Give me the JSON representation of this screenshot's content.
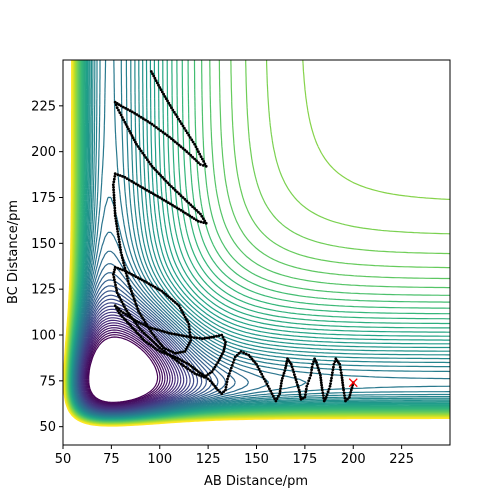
{
  "chart_data": {
    "type": "contour",
    "xlabel": "AB Distance/pm",
    "ylabel": "BC Distance/pm",
    "xlim": [
      50,
      250
    ],
    "ylim": [
      40,
      250
    ],
    "x_ticks": [
      "50",
      "75",
      "100",
      "125",
      "150",
      "175",
      "200",
      "225"
    ],
    "y_ticks": [
      "50",
      "75",
      "100",
      "125",
      "150",
      "175",
      "200",
      "225"
    ],
    "x_tick_values": [
      50,
      75,
      100,
      125,
      150,
      175,
      200,
      225
    ],
    "y_tick_values": [
      50,
      75,
      100,
      125,
      150,
      175,
      200,
      225
    ],
    "grid": false,
    "colormap": "viridis",
    "contour_colors": [
      "#440154",
      "#482878",
      "#3e4989",
      "#31688e",
      "#26828e",
      "#1f9e89",
      "#35b779",
      "#6ece58",
      "#b5de2b",
      "#fde725"
    ],
    "trajectory_color": "#000000",
    "trajectory_points": [
      [
        200,
        74
      ],
      [
        199,
        70
      ],
      [
        198,
        66
      ],
      [
        196,
        64
      ],
      [
        195,
        70
      ],
      [
        194,
        78
      ],
      [
        193,
        84
      ],
      [
        191,
        87
      ],
      [
        190,
        84
      ],
      [
        189,
        78
      ],
      [
        188,
        72
      ],
      [
        186,
        66
      ],
      [
        185,
        64
      ],
      [
        184,
        70
      ],
      [
        183,
        78
      ],
      [
        181,
        85
      ],
      [
        180,
        87
      ],
      [
        179,
        84
      ],
      [
        178,
        78
      ],
      [
        176,
        72
      ],
      [
        175,
        66
      ],
      [
        173,
        65
      ],
      [
        172,
        70
      ],
      [
        170,
        77
      ],
      [
        168,
        84
      ],
      [
        166,
        87
      ],
      [
        165,
        82
      ],
      [
        163,
        75
      ],
      [
        162,
        68
      ],
      [
        160,
        64
      ],
      [
        158,
        68
      ],
      [
        154,
        76
      ],
      [
        150,
        84
      ],
      [
        146,
        89
      ],
      [
        142,
        91
      ],
      [
        139,
        88
      ],
      [
        137,
        82
      ],
      [
        135,
        76
      ],
      [
        134,
        70
      ],
      [
        132,
        68
      ],
      [
        130,
        70
      ],
      [
        127,
        74
      ],
      [
        124,
        77
      ],
      [
        120,
        80
      ],
      [
        115,
        84
      ],
      [
        108,
        88
      ],
      [
        100,
        91
      ],
      [
        92,
        97
      ],
      [
        85,
        105
      ],
      [
        79,
        112
      ],
      [
        77,
        116
      ],
      [
        80,
        113
      ],
      [
        87,
        108
      ],
      [
        95,
        104
      ],
      [
        105,
        101
      ],
      [
        115,
        99
      ],
      [
        122,
        98
      ],
      [
        128,
        99
      ],
      [
        132,
        100
      ],
      [
        134,
        96
      ],
      [
        133,
        91
      ],
      [
        130,
        85
      ],
      [
        127,
        80
      ],
      [
        123,
        77
      ],
      [
        118,
        79
      ],
      [
        110,
        85
      ],
      [
        100,
        93
      ],
      [
        90,
        103
      ],
      [
        83,
        113
      ],
      [
        78,
        123
      ],
      [
        76,
        133
      ],
      [
        77,
        137
      ],
      [
        82,
        135
      ],
      [
        91,
        130
      ],
      [
        101,
        124
      ],
      [
        110,
        116
      ],
      [
        115,
        106
      ],
      [
        116,
        97
      ],
      [
        113,
        91
      ],
      [
        108,
        90
      ],
      [
        102,
        93
      ],
      [
        96,
        101
      ],
      [
        89,
        113
      ],
      [
        84,
        128
      ],
      [
        80,
        145
      ],
      [
        77,
        165
      ],
      [
        76,
        182
      ],
      [
        77,
        188
      ],
      [
        82,
        186
      ],
      [
        90,
        181
      ],
      [
        100,
        175
      ],
      [
        111,
        168
      ],
      [
        120,
        162
      ],
      [
        124,
        161
      ],
      [
        121,
        166
      ],
      [
        114,
        173
      ],
      [
        105,
        182
      ],
      [
        96,
        192
      ],
      [
        88,
        204
      ],
      [
        82,
        216
      ],
      [
        78,
        224
      ],
      [
        77,
        227
      ],
      [
        80,
        225
      ],
      [
        87,
        221
      ],
      [
        96,
        215
      ],
      [
        105,
        208
      ],
      [
        114,
        200
      ],
      [
        121,
        193
      ],
      [
        124,
        192
      ],
      [
        122,
        196
      ],
      [
        118,
        204
      ],
      [
        112,
        214
      ],
      [
        106,
        224
      ],
      [
        100,
        235
      ],
      [
        95,
        245
      ]
    ],
    "marker": {
      "x": 200,
      "y": 74,
      "symbol": "x",
      "color": "#ff0000"
    }
  }
}
